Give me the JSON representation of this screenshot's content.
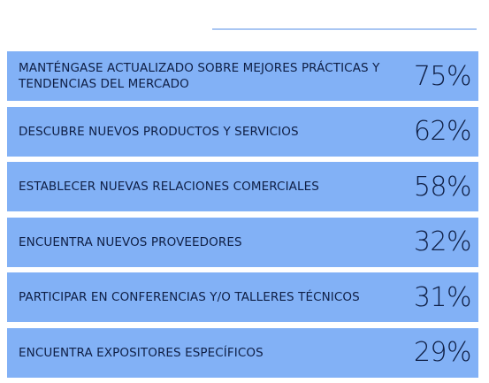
{
  "chart_data": {
    "type": "table",
    "unit": "%",
    "rows": [
      {
        "label": "MANTÉNGASE ACTUALIZADO SOBRE MEJORES PRÁCTICAS Y TENDENCIAS DEL MERCADO",
        "value": 75,
        "display": "75%"
      },
      {
        "label": "DESCUBRE NUEVOS PRODUCTOS Y SERVICIOS",
        "value": 62,
        "display": "62%"
      },
      {
        "label": "ESTABLECER NUEVAS RELACIONES COMERCIALES",
        "value": 58,
        "display": "58%"
      },
      {
        "label": "ENCUENTRA NUEVOS PROVEEDORES",
        "value": 32,
        "display": "32%"
      },
      {
        "label": "PARTICIPAR EN CONFERENCIAS Y/O TALLERES TÉCNICOS",
        "value": 31,
        "display": "31%"
      },
      {
        "label": "ENCUENTRA EXPOSITORES ESPECÍFICOS",
        "value": 29,
        "display": "29%"
      }
    ]
  },
  "colors": {
    "row_background": "#82b1f6",
    "text": "#0f1f45",
    "rule": "#a9c6f3"
  }
}
